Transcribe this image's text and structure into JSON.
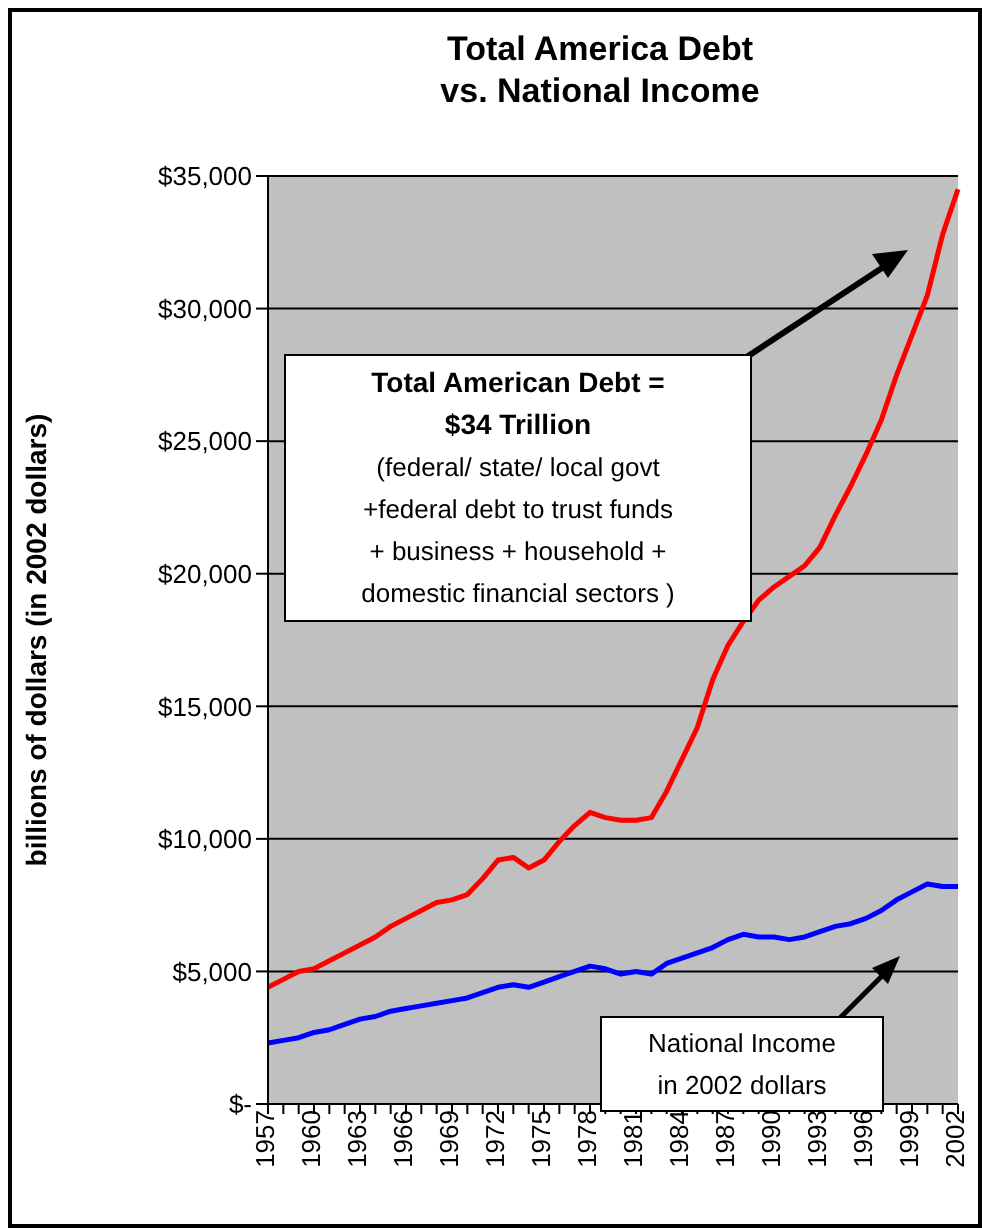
{
  "chart_data": {
    "type": "line",
    "title": "Total America Debt\nvs. National Income",
    "ylabel": "billions of dollars (in 2002 dollars)",
    "categories": [
      "1957",
      null,
      null,
      "1960",
      null,
      null,
      "1963",
      null,
      null,
      "1966",
      null,
      null,
      "1969",
      null,
      null,
      "1972",
      null,
      null,
      "1975",
      null,
      null,
      "1978",
      null,
      null,
      "1981",
      null,
      null,
      "1984",
      null,
      null,
      "1987",
      null,
      null,
      "1990",
      null,
      null,
      "1993",
      null,
      null,
      "1996",
      null,
      null,
      "1999",
      null,
      null,
      "2002"
    ],
    "series": [
      {
        "color": "#ff0000",
        "values": [
          4400,
          4700,
          5000,
          5100,
          5400,
          5700,
          6000,
          6300,
          6700,
          7000,
          7300,
          7600,
          7700,
          7900,
          8500,
          9200,
          9300,
          8900,
          9200,
          9900,
          10500,
          11000,
          10800,
          10700,
          10700,
          10800,
          11800,
          13000,
          14200,
          16000,
          17300,
          18200,
          19000,
          19500,
          19900,
          20300,
          21000,
          22200,
          23300,
          24500,
          25800,
          27500,
          29000,
          30500,
          32800,
          34500
        ]
      },
      {
        "color": "#0000ff",
        "values": [
          2300,
          2400,
          2500,
          2700,
          2800,
          3000,
          3200,
          3300,
          3500,
          3600,
          3700,
          3800,
          3900,
          4000,
          4200,
          4400,
          4500,
          4400,
          4600,
          4800,
          5000,
          5200,
          5100,
          4900,
          5000,
          4900,
          5300,
          5500,
          5700,
          5900,
          6200,
          6400,
          6300,
          6300,
          6200,
          6300,
          6500,
          6700,
          6800,
          7000,
          7300,
          7700,
          8000,
          8300,
          8200,
          8200
        ]
      }
    ],
    "ylim": [
      0,
      35000
    ],
    "yticks": [
      {
        "value": 0,
        "label": "$-"
      },
      {
        "value": 5000,
        "label": "$5,000"
      },
      {
        "value": 10000,
        "label": "$10,000"
      },
      {
        "value": 15000,
        "label": "$15,000"
      },
      {
        "value": 20000,
        "label": "$20,000"
      },
      {
        "value": 25000,
        "label": "$25,000"
      },
      {
        "value": 30000,
        "label": "$30,000"
      },
      {
        "value": 35000,
        "label": "$35,000"
      }
    ],
    "grid": "y",
    "marker": "none",
    "line_style": "solid",
    "annotations": [
      "Total American Debt =\n$34 Trillion",
      "(federal/ state/ local govt\n+federal debt to trust funds\n+ business + household +\ndomestic financial sectors )",
      "National Income\nin 2002 dollars"
    ]
  }
}
